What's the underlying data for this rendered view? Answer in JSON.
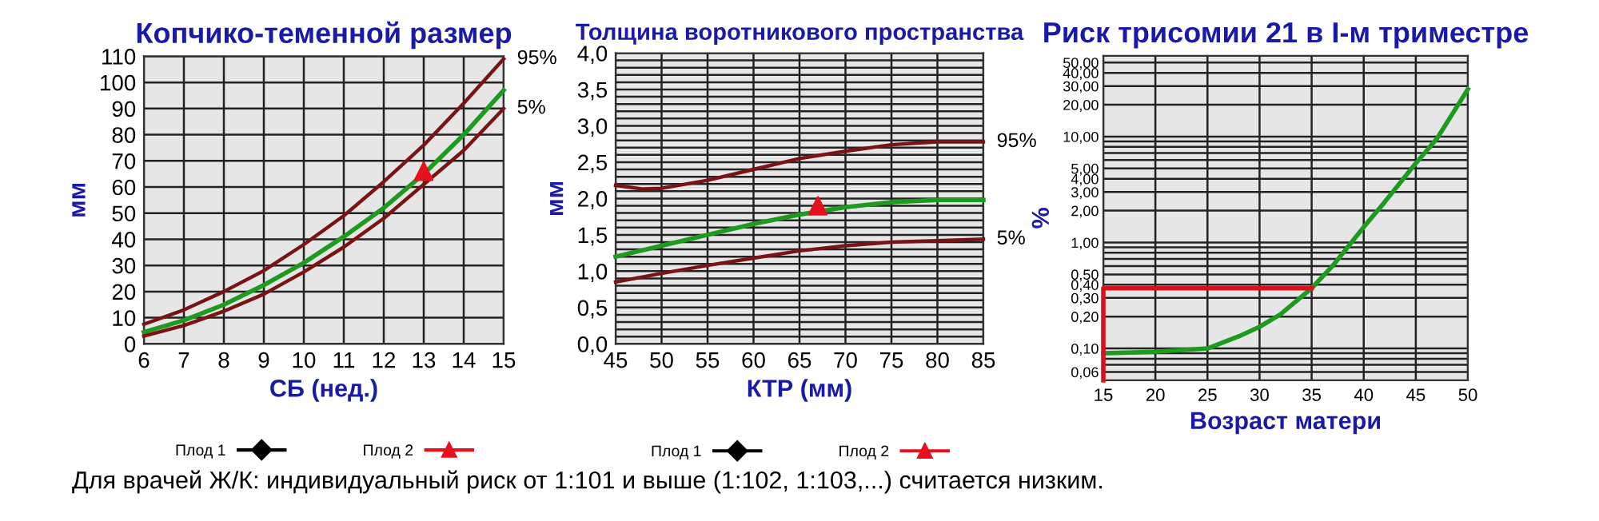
{
  "chart_data": [
    {
      "type": "line",
      "title": "Копчико-теменной размер",
      "xlabel": "СБ (нед.)",
      "ylabel": "мм",
      "xlim": [
        6,
        15
      ],
      "xticks": [
        6,
        7,
        8,
        9,
        10,
        11,
        12,
        13,
        14,
        15
      ],
      "ylim": [
        0,
        110
      ],
      "yticks": [
        0,
        10,
        20,
        30,
        40,
        50,
        60,
        70,
        80,
        90,
        100,
        110
      ],
      "grid": true,
      "legend": "bottom",
      "annotations": [
        "Для врачей Ж/К: индивидуальный риск от 1:101 и выше (1:102, 1:103,...) считается низким."
      ],
      "series": [
        {
          "name": "95%",
          "color": "#7a1414",
          "x": [
            6,
            7,
            8,
            9,
            10,
            11,
            12,
            13,
            14,
            15
          ],
          "values": [
            7.5,
            13,
            20,
            28,
            38,
            49,
            62,
            76,
            92,
            109
          ]
        },
        {
          "color": "#1e9a1e",
          "x": [
            6,
            7,
            8,
            9,
            10,
            11,
            12,
            13,
            14,
            15
          ],
          "values": [
            4.5,
            9,
            15,
            22.5,
            31,
            41,
            52,
            65,
            80,
            97
          ]
        },
        {
          "name": "5%",
          "color": "#7a1414",
          "x": [
            6,
            7,
            8,
            9,
            10,
            11,
            12,
            13,
            14,
            15
          ],
          "values": [
            3,
            7,
            12.5,
            19,
            27.5,
            37,
            48,
            61,
            74,
            90
          ]
        },
        {
          "name": "Плод 1",
          "type": "scatter",
          "marker": "diamond",
          "color": "#000000"
        },
        {
          "name": "Плод 2",
          "type": "scatter",
          "marker": "triangle",
          "color": "#e8101e",
          "x": [
            13
          ],
          "values": [
            66
          ]
        }
      ]
    },
    {
      "type": "line",
      "title": "Толщина воротникового пространства",
      "xlabel": "КТР (мм)",
      "ylabel": "мм",
      "xlim": [
        45,
        85
      ],
      "xticks": [
        45,
        50,
        55,
        60,
        65,
        70,
        75,
        80,
        85
      ],
      "ylim": [
        0,
        4
      ],
      "yticks": [
        {
          "value": 0,
          "label": "0,0"
        },
        {
          "value": 0.1,
          "label": null
        },
        {
          "value": 0.2,
          "label": null
        },
        {
          "value": 0.3,
          "label": null
        },
        {
          "value": 0.4,
          "label": null
        },
        {
          "value": 0.5,
          "label": "0,5"
        },
        {
          "value": 0.6,
          "label": null
        },
        {
          "value": 0.7,
          "label": null
        },
        {
          "value": 0.8,
          "label": null
        },
        {
          "value": 0.9,
          "label": null
        },
        {
          "value": 1.0,
          "label": "1,0"
        },
        {
          "value": 1.1,
          "label": null
        },
        {
          "value": 1.2,
          "label": null
        },
        {
          "value": 1.3,
          "label": null
        },
        {
          "value": 1.4,
          "label": null
        },
        {
          "value": 1.5,
          "label": "1,5"
        },
        {
          "value": 1.6,
          "label": null
        },
        {
          "value": 1.7,
          "label": null
        },
        {
          "value": 1.8,
          "label": null
        },
        {
          "value": 1.9,
          "label": null
        },
        {
          "value": 2.0,
          "label": "2,0"
        },
        {
          "value": 2.1,
          "label": null
        },
        {
          "value": 2.2,
          "label": null
        },
        {
          "value": 2.3,
          "label": null
        },
        {
          "value": 2.4,
          "label": null
        },
        {
          "value": 2.5,
          "label": "2,5"
        },
        {
          "value": 2.6,
          "label": null
        },
        {
          "value": 2.7,
          "label": null
        },
        {
          "value": 2.8,
          "label": null
        },
        {
          "value": 2.9,
          "label": null
        },
        {
          "value": 3.0,
          "label": "3,0"
        },
        {
          "value": 3.1,
          "label": null
        },
        {
          "value": 3.2,
          "label": null
        },
        {
          "value": 3.3,
          "label": null
        },
        {
          "value": 3.4,
          "label": null
        },
        {
          "value": 3.5,
          "label": "3,5"
        },
        {
          "value": 3.6,
          "label": null
        },
        {
          "value": 3.7,
          "label": null
        },
        {
          "value": 3.8,
          "label": null
        },
        {
          "value": 3.9,
          "label": null
        },
        {
          "value": 4.0,
          "label": "4,0"
        }
      ],
      "grid": true,
      "legend": "bottom",
      "series": [
        {
          "name": "95%",
          "color": "#7a1414",
          "x": [
            45,
            48,
            50,
            55,
            60,
            65,
            70,
            75,
            80,
            85
          ],
          "values": [
            2.18,
            2.13,
            2.14,
            2.25,
            2.4,
            2.55,
            2.65,
            2.74,
            2.78,
            2.78
          ]
        },
        {
          "color": "#1e9a1e",
          "x": [
            45,
            50,
            55,
            60,
            65,
            70,
            75,
            80,
            85
          ],
          "values": [
            1.2,
            1.35,
            1.5,
            1.65,
            1.78,
            1.88,
            1.95,
            1.98,
            1.98
          ]
        },
        {
          "name": "5%",
          "color": "#7a1414",
          "x": [
            45,
            50,
            55,
            60,
            65,
            70,
            75,
            80,
            85
          ],
          "values": [
            0.85,
            0.97,
            1.08,
            1.18,
            1.28,
            1.35,
            1.4,
            1.42,
            1.44
          ]
        },
        {
          "name": "Плод 1",
          "type": "scatter",
          "marker": "diamond",
          "color": "#000000"
        },
        {
          "name": "Плод 2",
          "type": "scatter",
          "marker": "triangle",
          "color": "#e8101e",
          "x": [
            67
          ],
          "values": [
            1.9
          ]
        }
      ]
    },
    {
      "type": "line",
      "title": "Риск трисомии 21 в I-м триместре",
      "xlabel": "Возраст матери",
      "ylabel": "%",
      "log": "y",
      "xlim": [
        15,
        50
      ],
      "xticks": [
        15,
        20,
        25,
        30,
        35,
        40,
        45,
        50
      ],
      "ylim": [
        0.05,
        58
      ],
      "yticks": [
        {
          "value": 0.06,
          "label": "0,06"
        },
        {
          "value": 0.07,
          "label": null
        },
        {
          "value": 0.08,
          "label": null
        },
        {
          "value": 0.09,
          "label": null
        },
        {
          "value": 0.1,
          "label": "0,10"
        },
        {
          "value": 0.2,
          "label": "0,20"
        },
        {
          "value": 0.3,
          "label": "0,30"
        },
        {
          "value": 0.4,
          "label": "0,40"
        },
        {
          "value": 0.5,
          "label": "0,50"
        },
        {
          "value": 0.6,
          "label": null
        },
        {
          "value": 0.7,
          "label": null
        },
        {
          "value": 0.8,
          "label": null
        },
        {
          "value": 0.9,
          "label": null
        },
        {
          "value": 1,
          "label": "1,00"
        },
        {
          "value": 2,
          "label": "2,00"
        },
        {
          "value": 3,
          "label": "3,00"
        },
        {
          "value": 4,
          "label": "4,00"
        },
        {
          "value": 5,
          "label": "5,00"
        },
        {
          "value": 6,
          "label": null
        },
        {
          "value": 7,
          "label": null
        },
        {
          "value": 8,
          "label": null
        },
        {
          "value": 9,
          "label": null
        },
        {
          "value": 10,
          "label": "10,00"
        },
        {
          "value": 20,
          "label": "20,00"
        },
        {
          "value": 30,
          "label": "30,00"
        },
        {
          "value": 40,
          "label": "40,00"
        },
        {
          "value": 50,
          "label": "50,00"
        }
      ],
      "grid": true,
      "series": [
        {
          "color": "#1e9a1e",
          "x": [
            15,
            20,
            25,
            28,
            30,
            32,
            35,
            37,
            40,
            42,
            45,
            47,
            50
          ],
          "values": [
            0.09,
            0.093,
            0.1,
            0.13,
            0.16,
            0.21,
            0.37,
            0.6,
            1.4,
            2.4,
            5.6,
            9.5,
            28
          ]
        },
        {
          "color": "#d8101e",
          "x": [
            15,
            15,
            35
          ],
          "values": [
            0.05,
            0.37,
            0.37
          ]
        }
      ]
    }
  ]
}
